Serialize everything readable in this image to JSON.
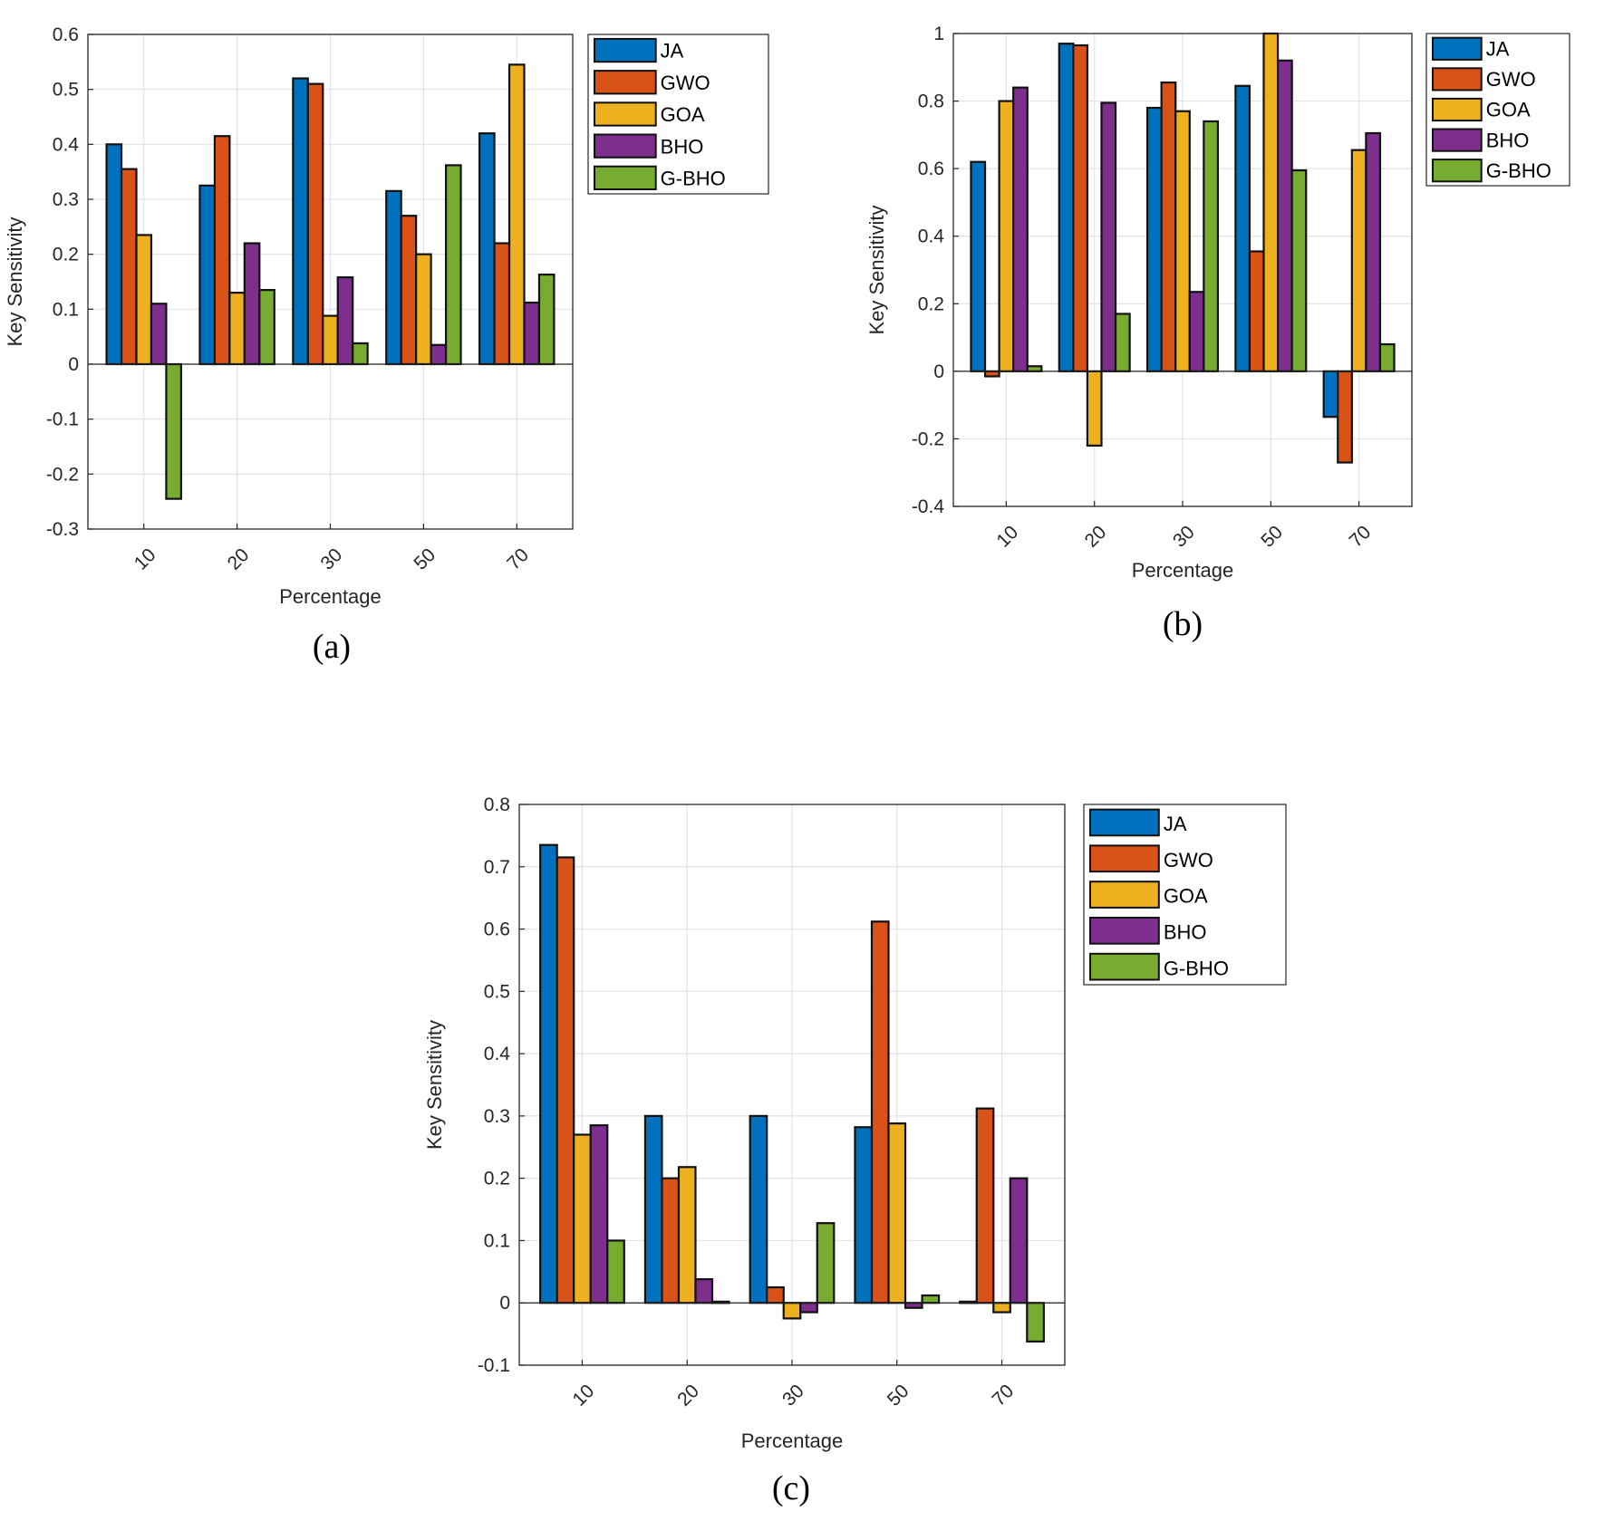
{
  "colors": {
    "JA": "#0072BD",
    "GWO": "#D95319",
    "GOA": "#EDB120",
    "BHO": "#7E2F8E",
    "G-BHO": "#77AC30"
  },
  "chart_data": [
    {
      "type": "bar",
      "caption": "(a)",
      "xlabel": "Percentage",
      "ylabel": "Key Sensitivity",
      "categories": [
        "10",
        "20",
        "30",
        "50",
        "70"
      ],
      "ylim": [
        -0.3,
        0.6
      ],
      "yticks": [
        -0.3,
        -0.2,
        -0.1,
        0,
        0.1,
        0.2,
        0.3,
        0.4,
        0.5,
        0.6
      ],
      "ytick_labels": [
        "-0.3",
        "-0.2",
        "-0.1",
        "0",
        "0.1",
        "0.2",
        "0.3",
        "0.4",
        "0.5",
        "0.6"
      ],
      "grid": true,
      "legend_position": "outside-right-top",
      "series": [
        {
          "name": "JA",
          "values": [
            0.4,
            0.325,
            0.52,
            0.315,
            0.42
          ]
        },
        {
          "name": "GWO",
          "values": [
            0.355,
            0.415,
            0.51,
            0.27,
            0.22
          ]
        },
        {
          "name": "GOA",
          "values": [
            0.235,
            0.13,
            0.088,
            0.2,
            0.545
          ]
        },
        {
          "name": "BHO",
          "values": [
            0.11,
            0.22,
            0.158,
            0.035,
            0.112
          ]
        },
        {
          "name": "G-BHO",
          "values": [
            -0.245,
            0.135,
            0.038,
            0.362,
            0.163
          ]
        }
      ]
    },
    {
      "type": "bar",
      "caption": "(b)",
      "xlabel": "Percentage",
      "ylabel": "Key Sensitivity",
      "categories": [
        "10",
        "20",
        "30",
        "50",
        "70"
      ],
      "ylim": [
        -0.4,
        1.0
      ],
      "yticks": [
        -0.4,
        -0.2,
        0,
        0.2,
        0.4,
        0.6,
        0.8,
        1.0
      ],
      "ytick_labels": [
        "-0.4",
        "-0.2",
        "0",
        "0.2",
        "0.4",
        "0.6",
        "0.8",
        "1"
      ],
      "grid": true,
      "legend_position": "outside-right-top",
      "series": [
        {
          "name": "JA",
          "values": [
            0.62,
            0.97,
            0.78,
            0.845,
            -0.135
          ]
        },
        {
          "name": "GWO",
          "values": [
            -0.015,
            0.965,
            0.855,
            0.355,
            -0.27
          ]
        },
        {
          "name": "GOA",
          "values": [
            0.8,
            -0.22,
            0.77,
            1.0,
            0.655
          ]
        },
        {
          "name": "BHO",
          "values": [
            0.84,
            0.795,
            0.235,
            0.92,
            0.705
          ]
        },
        {
          "name": "G-BHO",
          "values": [
            0.015,
            0.17,
            0.74,
            0.595,
            0.08
          ]
        }
      ]
    },
    {
      "type": "bar",
      "caption": "(c)",
      "xlabel": "Percentage",
      "ylabel": "Key Sensitivity",
      "categories": [
        "10",
        "20",
        "30",
        "50",
        "70"
      ],
      "ylim": [
        -0.1,
        0.8
      ],
      "yticks": [
        -0.1,
        0,
        0.1,
        0.2,
        0.3,
        0.4,
        0.5,
        0.6,
        0.7,
        0.8
      ],
      "ytick_labels": [
        "-0.1",
        "0",
        "0.1",
        "0.2",
        "0.3",
        "0.4",
        "0.5",
        "0.6",
        "0.7",
        "0.8"
      ],
      "grid": true,
      "legend_position": "outside-right-top",
      "series": [
        {
          "name": "JA",
          "values": [
            0.735,
            0.3,
            0.3,
            0.282,
            0.002
          ]
        },
        {
          "name": "GWO",
          "values": [
            0.715,
            0.2,
            0.025,
            0.612,
            0.312
          ]
        },
        {
          "name": "GOA",
          "values": [
            0.27,
            0.218,
            -0.025,
            0.288,
            -0.015
          ]
        },
        {
          "name": "BHO",
          "values": [
            0.285,
            0.038,
            -0.015,
            -0.008,
            0.2
          ]
        },
        {
          "name": "G-BHO",
          "values": [
            0.1,
            0.002,
            0.128,
            0.012,
            -0.062
          ]
        }
      ]
    }
  ]
}
